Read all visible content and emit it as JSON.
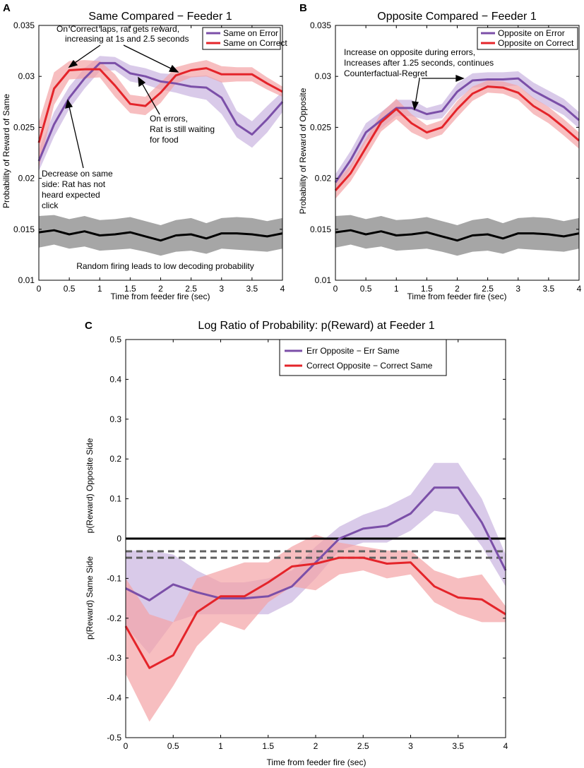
{
  "chart_data": [
    {
      "panel": "A",
      "type": "line",
      "title": "Same Compared − Feeder 1",
      "xlabel": "Time from feeder fire (sec)",
      "ylabel": "Probability of Reward of Same",
      "xlim": [
        0,
        4
      ],
      "ylim": [
        0.01,
        0.035
      ],
      "xticks": [
        0,
        0.5,
        1,
        1.5,
        2,
        2.5,
        3,
        3.5,
        4
      ],
      "xtick_labels": [
        "0",
        "0.5",
        "1",
        "1.5",
        "2",
        "2.5",
        "3",
        "3.5",
        "4"
      ],
      "yticks": [
        0.01,
        0.015,
        0.02,
        0.025,
        0.03,
        0.035
      ],
      "ytick_labels": [
        "0.01",
        "0.015",
        "0.02",
        "0.025",
        "0.03",
        "0.035"
      ],
      "x": [
        0,
        0.25,
        0.5,
        0.75,
        1,
        1.25,
        1.5,
        1.75,
        2,
        2.25,
        2.5,
        2.75,
        3,
        3.25,
        3.5,
        3.75,
        4
      ],
      "series": [
        {
          "name": "Same on Error",
          "color": "#7b4fa8",
          "band_color": "#c9b3e0",
          "values": [
            0.0217,
            0.0253,
            0.0279,
            0.0298,
            0.0313,
            0.0313,
            0.0303,
            0.03,
            0.0295,
            0.0293,
            0.029,
            0.0289,
            0.0279,
            0.0253,
            0.0243,
            0.0258,
            0.0275
          ],
          "lower": [
            0.0207,
            0.0241,
            0.0268,
            0.0288,
            0.0305,
            0.0306,
            0.0295,
            0.0292,
            0.0287,
            0.0284,
            0.028,
            0.0277,
            0.0263,
            0.024,
            0.023,
            0.0245,
            0.0265
          ],
          "upper": [
            0.0228,
            0.0265,
            0.029,
            0.0308,
            0.032,
            0.0319,
            0.0311,
            0.0308,
            0.0303,
            0.0302,
            0.03,
            0.0301,
            0.0295,
            0.0266,
            0.0256,
            0.0271,
            0.0285
          ]
        },
        {
          "name": "Same on Correct",
          "color": "#e4242a",
          "band_color": "#f4a3a5",
          "values": [
            0.0235,
            0.0288,
            0.0306,
            0.0307,
            0.0307,
            0.0291,
            0.0273,
            0.0271,
            0.0284,
            0.0301,
            0.0306,
            0.0308,
            0.0302,
            0.0302,
            0.0302,
            0.0293,
            0.0285
          ],
          "lower": [
            0.021,
            0.0272,
            0.0297,
            0.0298,
            0.0299,
            0.028,
            0.0264,
            0.0262,
            0.0274,
            0.0293,
            0.0299,
            0.03,
            0.0294,
            0.0295,
            0.0295,
            0.0287,
            0.028
          ],
          "upper": [
            0.0255,
            0.0304,
            0.0315,
            0.0316,
            0.0315,
            0.0302,
            0.0282,
            0.028,
            0.0294,
            0.0309,
            0.0313,
            0.0316,
            0.031,
            0.0309,
            0.0309,
            0.0299,
            0.029
          ]
        },
        {
          "name": "Random firing",
          "color": "#000000",
          "band_color": "#a6a6a6",
          "values": [
            0.0147,
            0.0149,
            0.0145,
            0.0148,
            0.0144,
            0.0145,
            0.0147,
            0.0143,
            0.0139,
            0.0144,
            0.0145,
            0.0141,
            0.0146,
            0.0146,
            0.0145,
            0.0143,
            0.0146
          ],
          "lower": [
            0.0132,
            0.0135,
            0.0131,
            0.0133,
            0.0129,
            0.013,
            0.0131,
            0.0128,
            0.0124,
            0.0128,
            0.0129,
            0.0126,
            0.0131,
            0.013,
            0.0129,
            0.0128,
            0.0131
          ],
          "upper": [
            0.0163,
            0.0164,
            0.016,
            0.0163,
            0.0159,
            0.016,
            0.0162,
            0.0158,
            0.0154,
            0.0159,
            0.0161,
            0.0156,
            0.0161,
            0.0162,
            0.0161,
            0.0158,
            0.0161
          ]
        }
      ],
      "legend": [
        "Same on Error",
        "Same on Correct"
      ],
      "annotations": [
        "On Correct laps, rat gets reward,",
        "increasing at 1s and 2.5 seconds",
        "On errors,",
        "Rat is still waiting",
        "for food",
        "Decrease on same",
        "side: Rat has not",
        "heard expected",
        "click",
        "Random firing leads to low decoding probability"
      ]
    },
    {
      "panel": "B",
      "type": "line",
      "title": "Opposite Compared − Feeder 1",
      "xlabel": "Time from feeder fire (sec)",
      "ylabel": "Probability of Reward of Opposite",
      "xlim": [
        0,
        4
      ],
      "ylim": [
        0.01,
        0.035
      ],
      "xticks": [
        0,
        0.5,
        1,
        1.5,
        2,
        2.5,
        3,
        3.5,
        4
      ],
      "xtick_labels": [
        "0",
        "0.5",
        "1",
        "1.5",
        "2",
        "2.5",
        "3",
        "3.5",
        "4"
      ],
      "yticks": [
        0.01,
        0.015,
        0.02,
        0.025,
        0.03,
        0.035
      ],
      "ytick_labels": [
        "0.01",
        "0.015",
        "0.02",
        "0.025",
        "0.03",
        "0.035"
      ],
      "x": [
        0,
        0.25,
        0.5,
        0.75,
        1,
        1.25,
        1.5,
        1.75,
        2,
        2.25,
        2.5,
        2.75,
        3,
        3.25,
        3.5,
        3.75,
        4
      ],
      "series": [
        {
          "name": "Opposite on Error",
          "color": "#7b4fa8",
          "band_color": "#c9b3e0",
          "values": [
            0.0196,
            0.0218,
            0.0245,
            0.0257,
            0.0269,
            0.0269,
            0.0263,
            0.0266,
            0.0285,
            0.0296,
            0.0297,
            0.0297,
            0.0298,
            0.0286,
            0.0278,
            0.027,
            0.0257
          ],
          "lower": [
            0.0188,
            0.0209,
            0.0236,
            0.0249,
            0.0261,
            0.0261,
            0.0257,
            0.0259,
            0.0277,
            0.0289,
            0.029,
            0.029,
            0.0291,
            0.0278,
            0.027,
            0.0262,
            0.0249
          ],
          "upper": [
            0.0204,
            0.0227,
            0.0254,
            0.0265,
            0.0277,
            0.0277,
            0.0269,
            0.0273,
            0.0293,
            0.0303,
            0.0304,
            0.0304,
            0.0305,
            0.0294,
            0.0286,
            0.0278,
            0.0265
          ]
        },
        {
          "name": "Opposite on Correct",
          "color": "#e4242a",
          "band_color": "#f4a3a5",
          "values": [
            0.0188,
            0.0205,
            0.023,
            0.0255,
            0.0268,
            0.0254,
            0.0245,
            0.025,
            0.0268,
            0.0283,
            0.029,
            0.0289,
            0.0284,
            0.0271,
            0.0262,
            0.025,
            0.0237
          ],
          "lower": [
            0.018,
            0.0197,
            0.0221,
            0.0246,
            0.0258,
            0.0245,
            0.0238,
            0.0243,
            0.026,
            0.0276,
            0.0284,
            0.0283,
            0.0277,
            0.0263,
            0.0254,
            0.0242,
            0.0229
          ],
          "upper": [
            0.0196,
            0.0213,
            0.0239,
            0.0264,
            0.0278,
            0.0263,
            0.0252,
            0.0257,
            0.0276,
            0.029,
            0.0296,
            0.0295,
            0.0291,
            0.0279,
            0.027,
            0.0258,
            0.0245
          ]
        },
        {
          "name": "Random firing",
          "color": "#000000",
          "band_color": "#a6a6a6",
          "values": [
            0.0147,
            0.0149,
            0.0145,
            0.0148,
            0.0144,
            0.0145,
            0.0147,
            0.0143,
            0.0139,
            0.0144,
            0.0145,
            0.0141,
            0.0146,
            0.0146,
            0.0145,
            0.0143,
            0.0146
          ],
          "lower": [
            0.0132,
            0.0135,
            0.0131,
            0.0133,
            0.0129,
            0.013,
            0.0131,
            0.0128,
            0.0124,
            0.0128,
            0.0129,
            0.0126,
            0.0131,
            0.013,
            0.0129,
            0.0128,
            0.0131
          ],
          "upper": [
            0.0163,
            0.0164,
            0.016,
            0.0163,
            0.0159,
            0.016,
            0.0162,
            0.0158,
            0.0154,
            0.0159,
            0.0161,
            0.0156,
            0.0161,
            0.0162,
            0.0161,
            0.0158,
            0.0161
          ]
        }
      ],
      "legend": [
        "Opposite on Error",
        "Opposite on Correct"
      ],
      "annotations": [
        "Increase on opposite during errors,",
        "Increases after 1.25 seconds, continues",
        "Counterfactual-Regret"
      ]
    },
    {
      "panel": "C",
      "type": "line",
      "title": "Log Ratio of Probability: p(Reward) at Feeder 1",
      "xlabel": "Time from feeder fire (sec)",
      "ylabel_top": "p(Reward) Opposite Side",
      "ylabel_bottom": "p(Reward) Same Side",
      "xlim": [
        0,
        4
      ],
      "ylim": [
        -0.5,
        0.5
      ],
      "xticks": [
        0,
        0.5,
        1,
        1.5,
        2,
        2.5,
        3,
        3.5,
        4
      ],
      "xtick_labels": [
        "0",
        "0.5",
        "1",
        "1.5",
        "2",
        "2.5",
        "3",
        "3.5",
        "4"
      ],
      "yticks": [
        -0.5,
        -0.4,
        -0.3,
        -0.2,
        -0.1,
        0,
        0.1,
        0.2,
        0.3,
        0.4,
        0.5
      ],
      "ytick_labels": [
        "-0.5",
        "-0.4",
        "-0.3",
        "-0.2",
        "-0.1",
        "0",
        "0.1",
        "0.2",
        "0.3",
        "0.4",
        "0.5"
      ],
      "x": [
        0,
        0.25,
        0.5,
        0.75,
        1,
        1.25,
        1.5,
        1.75,
        2,
        2.25,
        2.5,
        2.75,
        3,
        3.25,
        3.5,
        3.75,
        4
      ],
      "series": [
        {
          "name": "Err Opposite − Err Same",
          "color": "#7b4fa8",
          "band_color": "#c9b3e0",
          "values": [
            -0.125,
            -0.155,
            -0.115,
            -0.135,
            -0.15,
            -0.15,
            -0.145,
            -0.12,
            -0.06,
            0.0,
            0.025,
            0.032,
            0.063,
            0.128,
            0.128,
            0.04,
            -0.08
          ],
          "lower": [
            -0.22,
            -0.29,
            -0.21,
            -0.19,
            -0.19,
            -0.19,
            -0.19,
            -0.16,
            -0.1,
            -0.03,
            -0.01,
            -0.01,
            0.02,
            0.07,
            0.06,
            -0.02,
            -0.12
          ],
          "upper": [
            -0.03,
            -0.03,
            -0.04,
            -0.08,
            -0.11,
            -0.11,
            -0.1,
            -0.08,
            -0.02,
            0.03,
            0.06,
            0.08,
            0.11,
            0.19,
            0.19,
            0.1,
            -0.04
          ]
        },
        {
          "name": "Correct Opposite − Correct Same",
          "color": "#e4242a",
          "band_color": "#f4a3a5",
          "values": [
            -0.22,
            -0.325,
            -0.293,
            -0.185,
            -0.145,
            -0.145,
            -0.11,
            -0.07,
            -0.063,
            -0.048,
            -0.048,
            -0.063,
            -0.06,
            -0.12,
            -0.148,
            -0.153,
            -0.19
          ],
          "lower": [
            -0.34,
            -0.46,
            -0.37,
            -0.27,
            -0.21,
            -0.23,
            -0.16,
            -0.12,
            -0.13,
            -0.09,
            -0.08,
            -0.1,
            -0.09,
            -0.16,
            -0.19,
            -0.21,
            -0.21
          ],
          "upper": [
            -0.1,
            -0.19,
            -0.21,
            -0.1,
            -0.08,
            -0.06,
            -0.06,
            -0.02,
            0.01,
            -0.01,
            -0.02,
            -0.03,
            -0.03,
            -0.08,
            -0.1,
            -0.09,
            -0.17
          ]
        }
      ],
      "reference_lines": {
        "zero": 0,
        "dashed": [
          -0.032,
          -0.048
        ]
      },
      "legend": [
        "Err Opposite − Err Same",
        "Correct Opposite − Correct Same"
      ]
    }
  ]
}
